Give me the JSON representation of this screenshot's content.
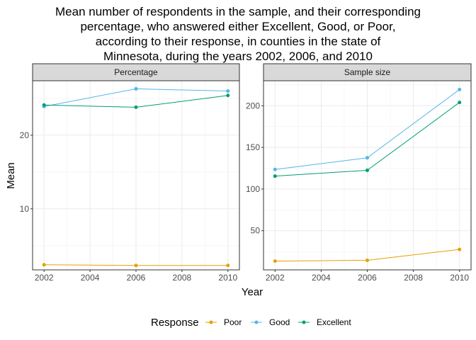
{
  "chart_data": {
    "type": "line",
    "title": "Mean number of respondents in the sample, and their corresponding\npercentage, who answered either Excellent, Good, or Poor,\naccording to their response, in counties in the state of\nMinnesota, during the years 2002, 2006, and 2010",
    "xlabel": "Year",
    "ylabel": "Mean",
    "legend": {
      "title": "Response",
      "placement": "bottom"
    },
    "x": [
      2002,
      2006,
      2010
    ],
    "xticks": [
      "2002",
      "2004",
      "2006",
      "2008",
      "2010"
    ],
    "colors": {
      "Poor": "#E6A000",
      "Good": "#56B4E9",
      "Excellent": "#009E73"
    },
    "panels": [
      {
        "label": "Percentage",
        "ylim": [
          1.7,
          27.4
        ],
        "yticks": [
          10,
          20
        ],
        "series": [
          {
            "name": "Poor",
            "values": [
              2.4,
              2.3,
              2.3
            ]
          },
          {
            "name": "Good",
            "values": [
              23.9,
              26.3,
              26.0
            ]
          },
          {
            "name": "Excellent",
            "values": [
              24.1,
              23.8,
              25.4
            ]
          }
        ]
      },
      {
        "label": "Sample size",
        "ylim": [
          3,
          230
        ],
        "yticks": [
          50,
          100,
          150,
          200
        ],
        "series": [
          {
            "name": "Poor",
            "values": [
              13.5,
              14.5,
              27.5
            ]
          },
          {
            "name": "Good",
            "values": [
              123.5,
              137.5,
              219.5
            ]
          },
          {
            "name": "Excellent",
            "values": [
              115.5,
              122.5,
              204.0
            ]
          }
        ]
      }
    ]
  }
}
